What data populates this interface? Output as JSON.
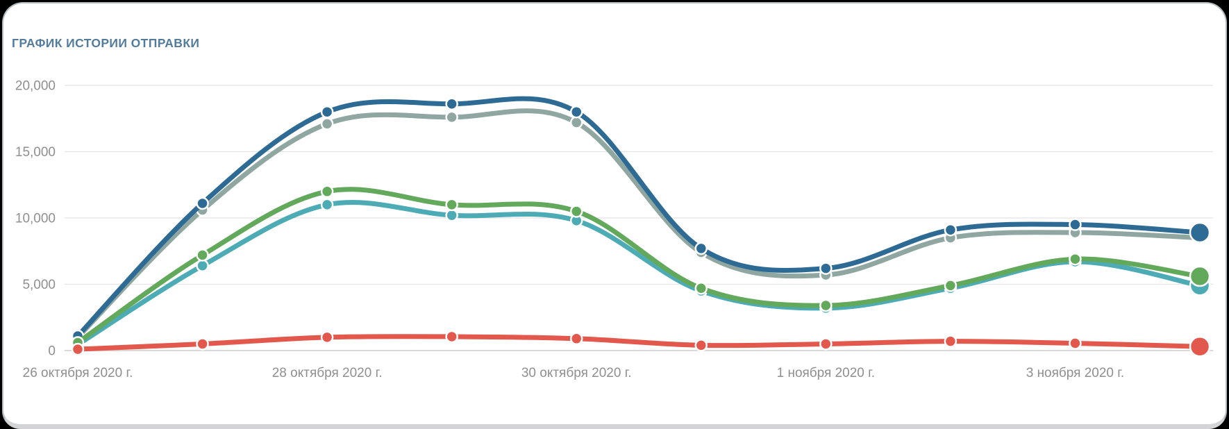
{
  "card": {
    "title": "ГРАФИК ИСТОРИИ ОТПРАВКИ"
  },
  "colors": {
    "title_text": "#527b9c",
    "axis_text": "#8f8f8f",
    "gridline": "#e4e4e4",
    "baseline": "#d9d9d9",
    "card_border": "#b3bcc3",
    "bottom_band": "#d2d4d5",
    "series_dark_blue": "#2e6b94",
    "series_sage_gray": "#8fa7a0",
    "series_green": "#63a95c",
    "series_teal": "#4dabb5",
    "series_red": "#e2584d"
  },
  "chart_data": {
    "type": "line",
    "title": "ГРАФИК ИСТОРИИ ОТПРАВКИ",
    "curve": "smooth",
    "grid": true,
    "legend": "none",
    "point_count": 10,
    "ylim": [
      0,
      20000
    ],
    "y_ticks": [
      {
        "value": 0,
        "label": "0"
      },
      {
        "value": 5000,
        "label": "5,000"
      },
      {
        "value": 10000,
        "label": "10,000"
      },
      {
        "value": 15000,
        "label": "15,000"
      },
      {
        "value": 20000,
        "label": "20,000"
      }
    ],
    "x_ticks": [
      {
        "index": 0,
        "label": "26 октября 2020 г."
      },
      {
        "index": 2,
        "label": "28 октября 2020 г."
      },
      {
        "index": 4,
        "label": "30 октября 2020 г."
      },
      {
        "index": 6,
        "label": "1 ноября 2020 г."
      },
      {
        "index": 8,
        "label": "3 ноября 2020 г."
      }
    ],
    "series": [
      {
        "name": "sage-gray",
        "color": "#8fa7a0",
        "end_dot_large": false,
        "values": [
          1000,
          10600,
          17100,
          17600,
          17200,
          7400,
          5700,
          8500,
          8900,
          8500
        ]
      },
      {
        "name": "dark-blue",
        "color": "#2e6b94",
        "end_dot_large": true,
        "values": [
          1100,
          11100,
          18000,
          18600,
          18000,
          7700,
          6200,
          9100,
          9500,
          8900
        ]
      },
      {
        "name": "teal",
        "color": "#4dabb5",
        "end_dot_large": true,
        "values": [
          450,
          6400,
          11000,
          10200,
          9800,
          4500,
          3200,
          4700,
          6700,
          4900
        ]
      },
      {
        "name": "green",
        "color": "#63a95c",
        "end_dot_large": true,
        "values": [
          600,
          7200,
          12000,
          11000,
          10500,
          4700,
          3400,
          4900,
          6900,
          5600
        ]
      },
      {
        "name": "red",
        "color": "#e2584d",
        "end_dot_large": true,
        "values": [
          100,
          500,
          1000,
          1050,
          900,
          400,
          500,
          700,
          550,
          300
        ]
      }
    ]
  }
}
